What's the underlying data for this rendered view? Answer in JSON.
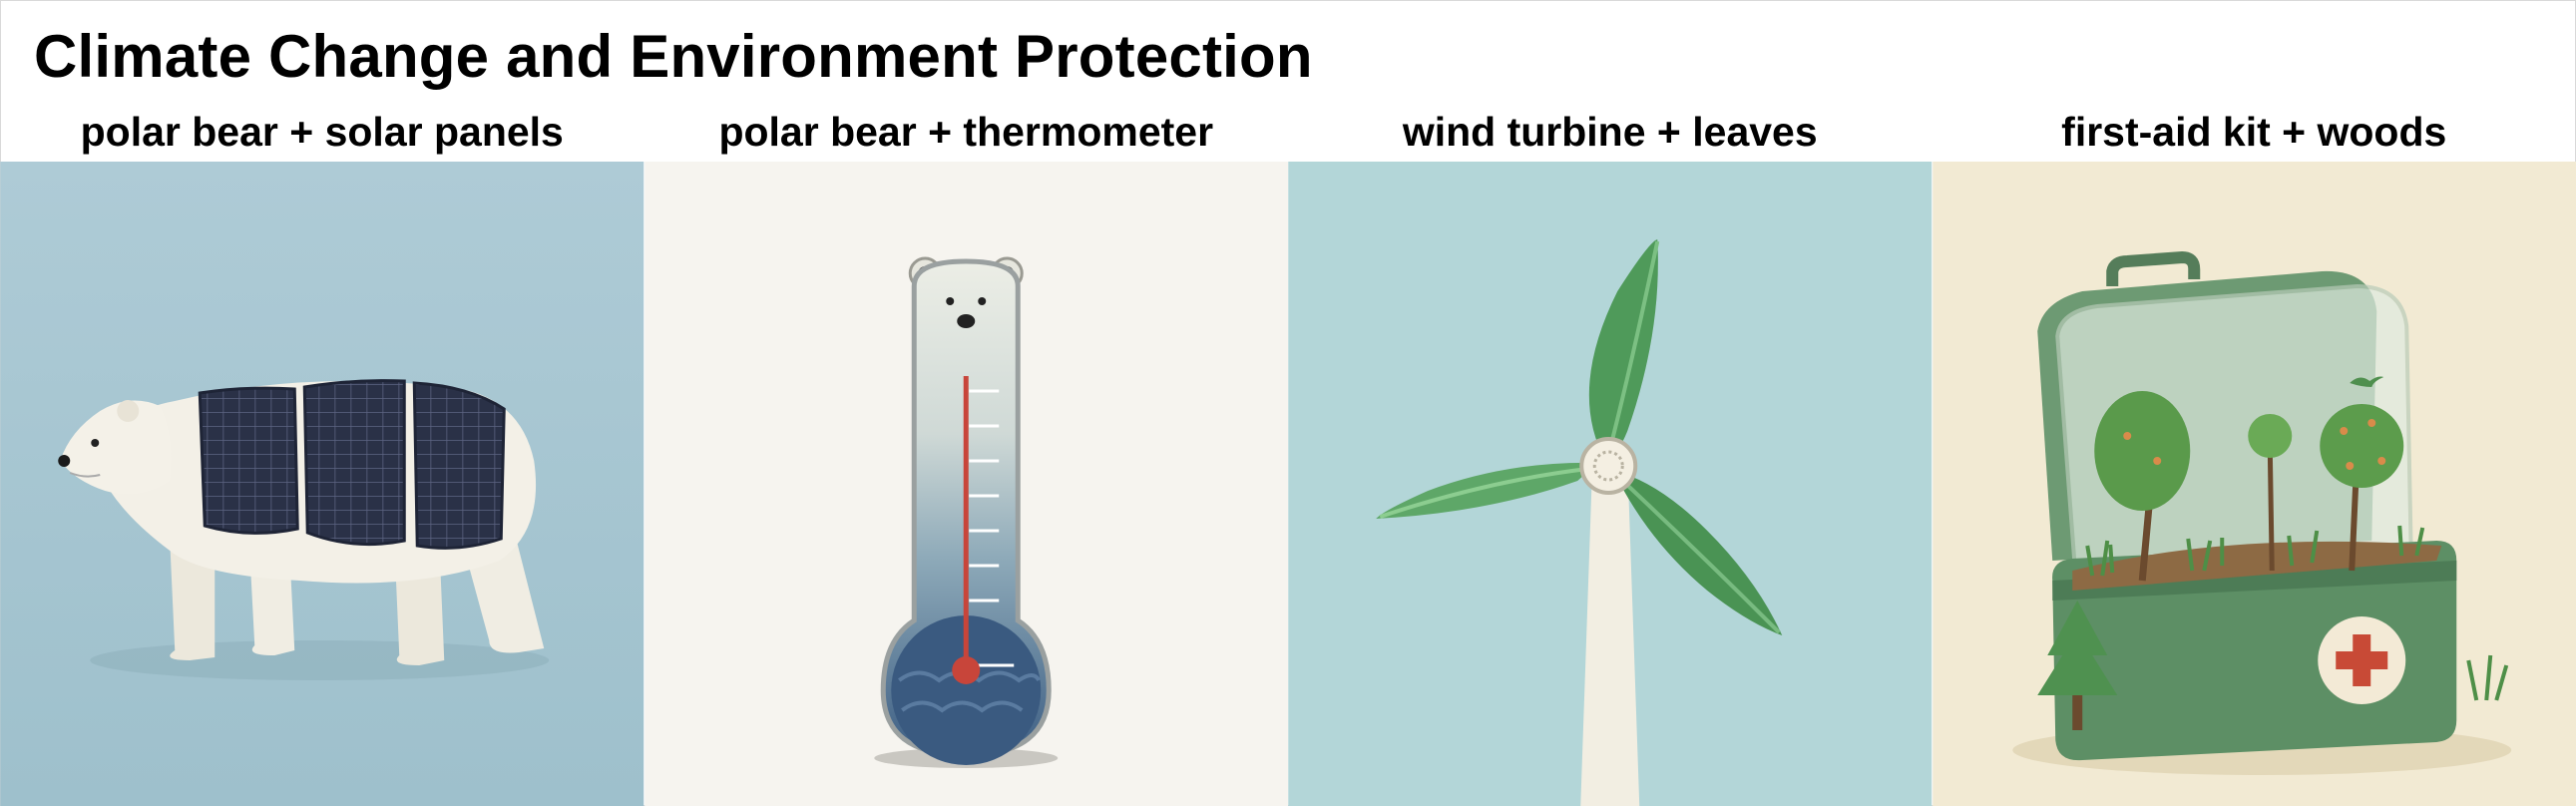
{
  "title": "Climate Change and Environment Protection",
  "panels": [
    {
      "caption": "polar bear + solar panels",
      "background": "#a9c7d2",
      "icon": "polar-bear-solar-panels"
    },
    {
      "caption": "polar bear + thermometer",
      "background": "#f6f4ef",
      "icon": "polar-bear-thermometer"
    },
    {
      "caption": "wind turbine + leaves",
      "background": "#b3d6d8",
      "icon": "wind-turbine-leaves"
    },
    {
      "caption": "first-aid kit + woods",
      "background": "#f2ead3",
      "icon": "first-aid-kit-woods"
    }
  ],
  "colors": {
    "solar_panel": "#2b3248",
    "bear_fur": "#f2efe6",
    "thermometer_liquid": "#c8453a",
    "turbine_blade": "#4f9a5a",
    "kit_green": "#5d8f65",
    "cross_red": "#c84a36"
  }
}
